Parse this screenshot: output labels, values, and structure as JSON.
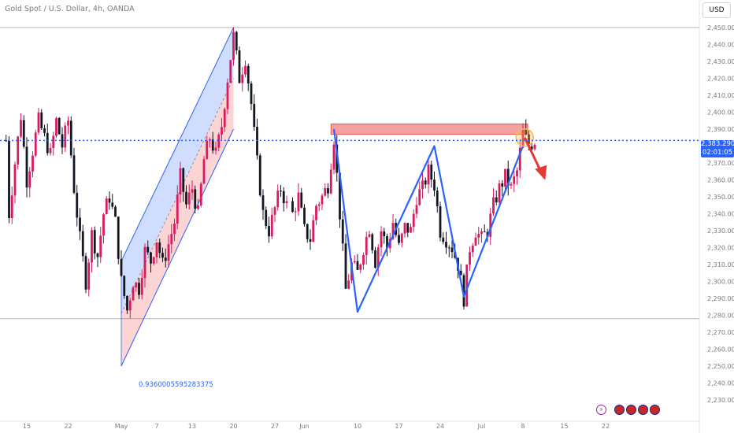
{
  "header": {
    "title": "Gold Spot / U.S. Dollar, 4h, OANDA",
    "currency": "USD"
  },
  "price_tag": {
    "price": "2,383.290",
    "countdown": "02:01:05",
    "color": "#2962ff"
  },
  "fib_label": "0.9360005595283375",
  "events": [
    {
      "icon": "lightning-icon",
      "color": "#9c27b0"
    },
    {
      "icon": "us-flag-icon",
      "color": "#c62828"
    },
    {
      "icon": "us-flag-icon",
      "color": "#c62828"
    },
    {
      "icon": "us-flag-icon",
      "color": "#c62828"
    },
    {
      "icon": "us-flag-icon",
      "color": "#c62828"
    }
  ],
  "colors": {
    "up": "#d81b60",
    "down": "#131722",
    "pattern_line": "#2962ff",
    "resistance_zone": "#ef5350",
    "arrow": "#e53935",
    "highlight_circle": "#ffb74d"
  },
  "chart_data": {
    "type": "candlestick",
    "title": "Gold Spot / U.S. Dollar, 4h, OANDA",
    "xlabel": "",
    "ylabel": "",
    "ylim": [
      2230,
      2455
    ],
    "y_ticks": [
      "2,450.000",
      "2,440.000",
      "2,430.000",
      "2,420.000",
      "2,410.000",
      "2,400.000",
      "2,390.000",
      "2,380.000",
      "2,370.000",
      "2,360.000",
      "2,350.000",
      "2,340.000",
      "2,330.000",
      "2,320.000",
      "2,310.000",
      "2,300.000",
      "2,290.000",
      "2,280.000",
      "2,270.000",
      "2,260.000",
      "2,250.000",
      "2,240.000",
      "2,230.000"
    ],
    "x_ticks": [
      {
        "label": "15",
        "day": 0
      },
      {
        "label": "22",
        "day": 7
      },
      {
        "label": "May",
        "day": 16
      },
      {
        "label": "7",
        "day": 22
      },
      {
        "label": "13",
        "day": 28
      },
      {
        "label": "20",
        "day": 35
      },
      {
        "label": "27",
        "day": 42
      },
      {
        "label": "Jun",
        "day": 47
      },
      {
        "label": "10",
        "day": 56
      },
      {
        "label": "17",
        "day": 63
      },
      {
        "label": "24",
        "day": 70
      },
      {
        "label": "Jul",
        "day": 77
      },
      {
        "label": "8",
        "day": 84
      },
      {
        "label": "15",
        "day": 91
      },
      {
        "label": "22",
        "day": 98
      }
    ],
    "current_price": 2383.29,
    "horizontal_lines": [
      2450,
      2278
    ],
    "resistance_zone": [
      2387,
      2393
    ],
    "price_path": [
      [
        -3,
        2340
      ],
      [
        -2,
        2370
      ],
      [
        -1,
        2398
      ],
      [
        0,
        2360
      ],
      [
        2,
        2395
      ],
      [
        4,
        2375
      ],
      [
        5,
        2395
      ],
      [
        6,
        2380
      ],
      [
        7,
        2395
      ],
      [
        8,
        2355
      ],
      [
        9,
        2325
      ],
      [
        10,
        2300
      ],
      [
        11,
        2328
      ],
      [
        12,
        2315
      ],
      [
        13,
        2340
      ],
      [
        14,
        2350
      ],
      [
        15,
        2335
      ],
      [
        16,
        2300
      ],
      [
        17,
        2283
      ],
      [
        18,
        2300
      ],
      [
        19,
        2296
      ],
      [
        20,
        2318
      ],
      [
        21,
        2312
      ],
      [
        22,
        2325
      ],
      [
        23,
        2310
      ],
      [
        24,
        2322
      ],
      [
        25,
        2335
      ],
      [
        26,
        2362
      ],
      [
        27,
        2345
      ],
      [
        28,
        2355
      ],
      [
        29,
        2340
      ],
      [
        30,
        2372
      ],
      [
        31,
        2385
      ],
      [
        32,
        2375
      ],
      [
        33,
        2392
      ],
      [
        34,
        2420
      ],
      [
        35,
        2445
      ],
      [
        36,
        2420
      ],
      [
        37,
        2432
      ],
      [
        38,
        2405
      ],
      [
        39,
        2370
      ],
      [
        40,
        2340
      ],
      [
        41,
        2330
      ],
      [
        42,
        2343
      ],
      [
        43,
        2355
      ],
      [
        44,
        2345
      ],
      [
        45,
        2340
      ],
      [
        46,
        2350
      ],
      [
        47,
        2330
      ],
      [
        48,
        2325
      ],
      [
        49,
        2345
      ],
      [
        50,
        2350
      ],
      [
        51,
        2357
      ],
      [
        52,
        2385
      ],
      [
        53,
        2340
      ],
      [
        54,
        2295
      ],
      [
        55,
        2310
      ],
      [
        56,
        2305
      ],
      [
        57,
        2320
      ],
      [
        58,
        2332
      ],
      [
        59,
        2312
      ],
      [
        60,
        2330
      ],
      [
        61,
        2320
      ],
      [
        62,
        2335
      ],
      [
        63,
        2320
      ],
      [
        64,
        2332
      ],
      [
        65,
        2330
      ],
      [
        66,
        2350
      ],
      [
        67,
        2355
      ],
      [
        68,
        2365
      ],
      [
        69,
        2357
      ],
      [
        70,
        2330
      ],
      [
        71,
        2325
      ],
      [
        72,
        2320
      ],
      [
        73,
        2310
      ],
      [
        74,
        2290
      ],
      [
        75,
        2320
      ],
      [
        76,
        2330
      ],
      [
        77,
        2325
      ],
      [
        78,
        2330
      ],
      [
        79,
        2345
      ],
      [
        80,
        2355
      ],
      [
        81,
        2362
      ],
      [
        82,
        2355
      ],
      [
        83,
        2365
      ],
      [
        84,
        2388
      ],
      [
        85,
        2380
      ],
      [
        86,
        2383.29
      ]
    ],
    "annotations": {
      "channel": {
        "upper": [
          [
            16,
            2312
          ],
          [
            35,
            2450
          ]
        ],
        "lower": [
          [
            16,
            2250
          ],
          [
            35,
            2390
          ]
        ],
        "mid": [
          [
            16,
            2281
          ],
          [
            35,
            2420
          ]
        ]
      },
      "zigzag": [
        [
          52,
          2390
        ],
        [
          56,
          2282
        ],
        [
          69,
          2380
        ],
        [
          74,
          2291
        ],
        [
          84,
          2380
        ]
      ],
      "fib_anchor": [
        16,
        2250
      ]
    }
  }
}
